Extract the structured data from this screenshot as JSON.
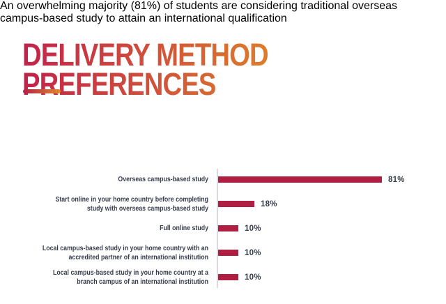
{
  "header": {
    "title_line1": "DELIVERY METHOD",
    "title_line2": "PREFERENCES"
  },
  "intro": {
    "line1": "An overwhelming majority (81%) of students are considering traditional overseas",
    "line2": "campus-based study to attain an international qualification"
  },
  "colors": {
    "title_gradient_start": "#c2224a",
    "title_gradient_end": "#dd7d2b",
    "underline_gradient_start": "#b31f47",
    "underline_gradient_end": "#e08a2c",
    "intro_text": "#474e5c",
    "chart_label": "#363d4a",
    "bar": "#b01e41",
    "axis": "#d9d9de"
  },
  "chart_data": {
    "type": "bar",
    "orientation": "horizontal",
    "title": "",
    "xlabel": "",
    "ylabel": "",
    "xlim": [
      0,
      100
    ],
    "grid": false,
    "legend": false,
    "bar_color": "#b01e41",
    "categories": [
      "Overseas campus-based study",
      "Start online in your home country before completing study with overseas campus-based study",
      "Full online study",
      "Local campus-based study in your home country with an accredited partner of an international institution",
      "Local campus-based study in your home country at a branch campus of an international institution"
    ],
    "values": [
      81,
      18,
      10,
      10,
      10
    ],
    "value_labels": [
      "81%",
      "18%",
      "10%",
      "10%",
      "10%"
    ],
    "rows": [
      {
        "label1": "Overseas campus-based study",
        "label2": "",
        "value": 81,
        "value_label": "81%"
      },
      {
        "label1": "Start online in your home country before completing",
        "label2": "study with overseas campus-based study",
        "value": 18,
        "value_label": "18%"
      },
      {
        "label1": "Full online study",
        "label2": "",
        "value": 10,
        "value_label": "10%"
      },
      {
        "label1": "Local campus-based study in your home country with an",
        "label2": "accredited partner of an international institution",
        "value": 10,
        "value_label": "10%"
      },
      {
        "label1": "Local campus-based study in your home country at a",
        "label2": "branch campus of an international institution",
        "value": 10,
        "value_label": "10%"
      }
    ]
  }
}
